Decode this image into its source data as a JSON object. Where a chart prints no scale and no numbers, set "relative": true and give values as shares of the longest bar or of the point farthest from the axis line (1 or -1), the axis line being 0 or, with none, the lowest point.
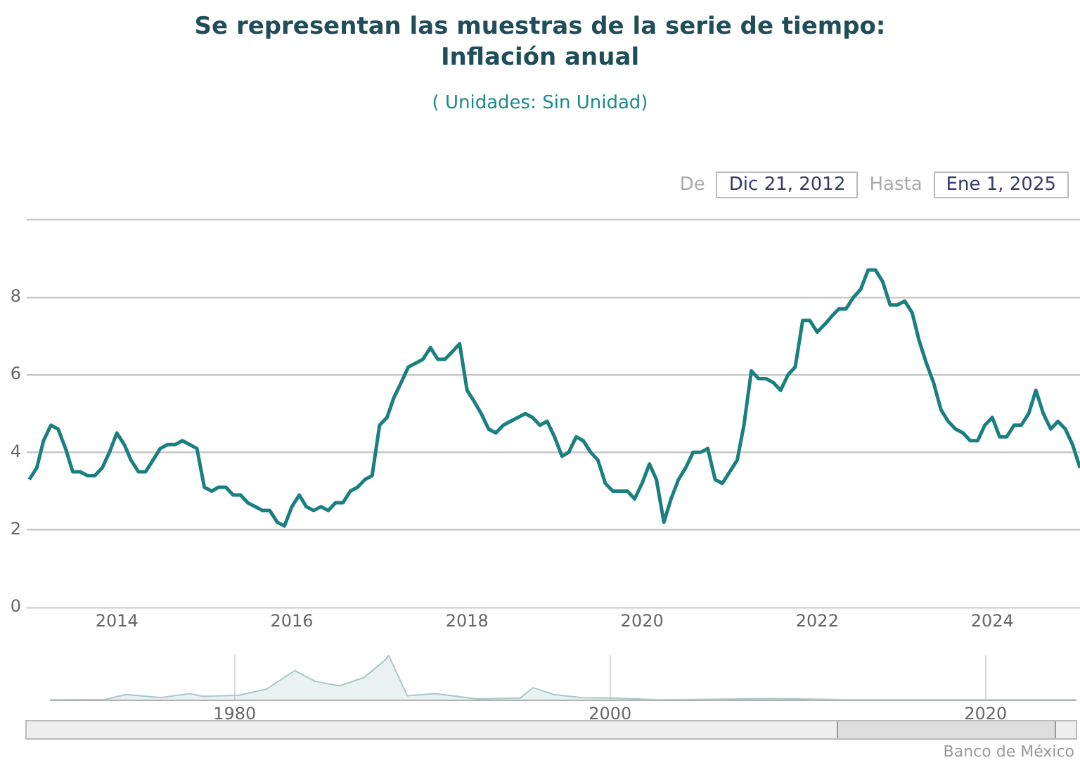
{
  "chart_data": [
    {
      "type": "line",
      "title": "Se representan las muestras de la serie de tiempo:\nInflación anual",
      "subtitle": "( Unidades:  Sin Unidad)",
      "x": [
        "2013-01",
        "2013-02",
        "2013-03",
        "2013-04",
        "2013-05",
        "2013-06",
        "2013-07",
        "2013-08",
        "2013-09",
        "2013-10",
        "2013-11",
        "2013-12",
        "2014-01",
        "2014-02",
        "2014-03",
        "2014-04",
        "2014-05",
        "2014-06",
        "2014-07",
        "2014-08",
        "2014-09",
        "2014-10",
        "2014-11",
        "2014-12",
        "2015-01",
        "2015-02",
        "2015-03",
        "2015-04",
        "2015-05",
        "2015-06",
        "2015-07",
        "2015-08",
        "2015-09",
        "2015-10",
        "2015-11",
        "2015-12",
        "2016-01",
        "2016-02",
        "2016-03",
        "2016-04",
        "2016-05",
        "2016-06",
        "2016-07",
        "2016-08",
        "2016-09",
        "2016-10",
        "2016-11",
        "2016-12",
        "2017-01",
        "2017-02",
        "2017-03",
        "2017-04",
        "2017-05",
        "2017-06",
        "2017-07",
        "2017-08",
        "2017-09",
        "2017-10",
        "2017-11",
        "2017-12",
        "2018-01",
        "2018-02",
        "2018-03",
        "2018-04",
        "2018-05",
        "2018-06",
        "2018-07",
        "2018-08",
        "2018-09",
        "2018-10",
        "2018-11",
        "2018-12",
        "2019-01",
        "2019-02",
        "2019-03",
        "2019-04",
        "2019-05",
        "2019-06",
        "2019-07",
        "2019-08",
        "2019-09",
        "2019-10",
        "2019-11",
        "2019-12",
        "2020-01",
        "2020-02",
        "2020-03",
        "2020-04",
        "2020-05",
        "2020-06",
        "2020-07",
        "2020-08",
        "2020-09",
        "2020-10",
        "2020-11",
        "2020-12",
        "2021-01",
        "2021-02",
        "2021-03",
        "2021-04",
        "2021-05",
        "2021-06",
        "2021-07",
        "2021-08",
        "2021-09",
        "2021-10",
        "2021-11",
        "2021-12",
        "2022-01",
        "2022-02",
        "2022-03",
        "2022-04",
        "2022-05",
        "2022-06",
        "2022-07",
        "2022-08",
        "2022-09",
        "2022-10",
        "2022-11",
        "2022-12",
        "2023-01",
        "2023-02",
        "2023-03",
        "2023-04",
        "2023-05",
        "2023-06",
        "2023-07",
        "2023-08",
        "2023-09",
        "2023-10",
        "2023-11",
        "2023-12",
        "2024-01",
        "2024-02",
        "2024-03",
        "2024-04",
        "2024-05",
        "2024-06",
        "2024-07",
        "2024-08",
        "2024-09",
        "2024-10",
        "2024-11",
        "2024-12",
        "2025-01"
      ],
      "series": [
        {
          "color": "#1a7f80",
          "values": [
            3.3,
            3.6,
            4.3,
            4.7,
            4.6,
            4.1,
            3.5,
            3.5,
            3.4,
            3.4,
            3.6,
            4.0,
            4.5,
            4.2,
            3.8,
            3.5,
            3.5,
            3.8,
            4.1,
            4.2,
            4.2,
            4.3,
            4.2,
            4.1,
            3.1,
            3.0,
            3.1,
            3.1,
            2.9,
            2.9,
            2.7,
            2.6,
            2.5,
            2.5,
            2.2,
            2.1,
            2.6,
            2.9,
            2.6,
            2.5,
            2.6,
            2.5,
            2.7,
            2.7,
            3.0,
            3.1,
            3.3,
            3.4,
            4.7,
            4.9,
            5.4,
            5.8,
            6.2,
            6.3,
            6.4,
            6.7,
            6.4,
            6.4,
            6.6,
            6.8,
            5.6,
            5.3,
            5.0,
            4.6,
            4.5,
            4.7,
            4.8,
            4.9,
            5.0,
            4.9,
            4.7,
            4.8,
            4.4,
            3.9,
            4.0,
            4.4,
            4.3,
            4.0,
            3.8,
            3.2,
            3.0,
            3.0,
            3.0,
            2.8,
            3.2,
            3.7,
            3.3,
            2.2,
            2.8,
            3.3,
            3.6,
            4.0,
            4.0,
            4.1,
            3.3,
            3.2,
            3.5,
            3.8,
            4.7,
            6.1,
            5.9,
            5.9,
            5.8,
            5.6,
            6.0,
            6.2,
            7.4,
            7.4,
            7.1,
            7.3,
            7.5,
            7.7,
            7.7,
            8.0,
            8.2,
            8.7,
            8.7,
            8.4,
            7.8,
            7.8,
            7.9,
            7.6,
            6.9,
            6.3,
            5.8,
            5.1,
            4.8,
            4.6,
            4.5,
            4.3,
            4.3,
            4.7,
            4.9,
            4.4,
            4.4,
            4.7,
            4.7,
            5.0,
            5.6,
            5.0,
            4.6,
            4.8,
            4.6,
            4.2,
            3.6
          ]
        }
      ],
      "xlim": [
        "2012-12-21",
        "2025-01-01"
      ],
      "xticks": [
        "2014",
        "2016",
        "2018",
        "2020",
        "2022",
        "2024"
      ],
      "ylim": [
        0,
        10
      ],
      "yticks": [
        0,
        2,
        4,
        6,
        8,
        {
          "value": 10,
          "label": null
        }
      ],
      "grid": "y",
      "legend": false,
      "marker": "none",
      "line_style": "solid",
      "annotations": [
        "De",
        "Dic 21, 2012",
        "Hasta",
        "Ene 1, 2025",
        "Banco de México"
      ]
    },
    {
      "type": "area",
      "relative": true,
      "x": [
        1970.2,
        1973.1,
        1974.2,
        1976.1,
        1977.6,
        1978.3,
        1980.2,
        1981.7,
        1983.2,
        1984.3,
        1985.6,
        1986.9,
        1988.0,
        1988.2,
        1989.2,
        1990.7,
        1992.9,
        1995.2,
        1995.9,
        1997.0,
        1998.5,
        2000.0,
        2002.7,
        2008.7,
        2012.8,
        2024.8
      ],
      "series": [
        {
          "color": "#a9c9c9",
          "values": [
            0.01,
            0.02,
            0.13,
            0.06,
            0.15,
            0.09,
            0.11,
            0.25,
            0.66,
            0.42,
            0.32,
            0.51,
            0.89,
            1,
            0.1,
            0.15,
            0.03,
            0.05,
            0.28,
            0.13,
            0.06,
            0.05,
            0.01,
            0.04,
            0.01,
            0.01
          ]
        }
      ],
      "xlim": [
        1970.2,
        2024.8
      ],
      "xticks": [
        1980,
        2000,
        2020
      ],
      "grid": "x",
      "legend": false,
      "marker": "none"
    }
  ]
}
